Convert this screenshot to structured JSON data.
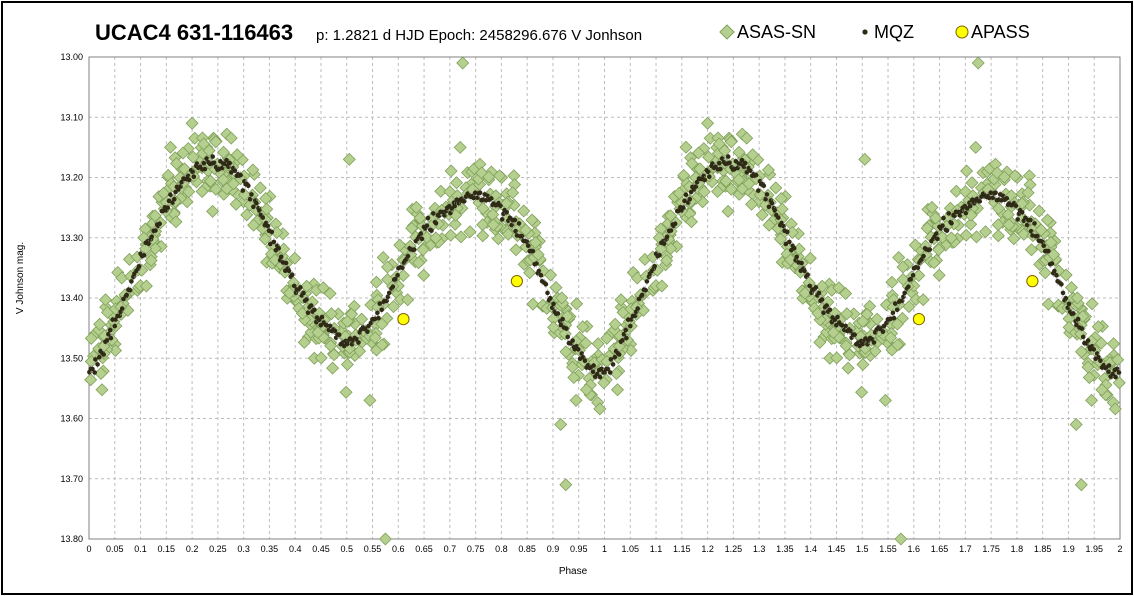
{
  "chart_data": {
    "type": "scatter",
    "title": "UCAC4 631-116463",
    "subtitle": "p: 1.2821 d  HJD Epoch: 2458296.676  V Jonhson",
    "xlabel": "Phase",
    "ylabel": "V Johnson mag.",
    "xlim": [
      0,
      2
    ],
    "ylim": [
      13.0,
      13.8
    ],
    "y_inverted": true,
    "grid": true,
    "legend_position": "top-right",
    "x_ticks": [
      "0",
      "0.05",
      "0.1",
      "0.15",
      "0.2",
      "0.25",
      "0.3",
      "0.35",
      "0.4",
      "0.45",
      "0.5",
      "0.55",
      "0.6",
      "0.65",
      "0.7",
      "0.75",
      "0.8",
      "0.85",
      "0.9",
      "0.95",
      "1",
      "1.05",
      "1.1",
      "1.15",
      "1.2",
      "1.25",
      "1.3",
      "1.35",
      "1.4",
      "1.45",
      "1.5",
      "1.55",
      "1.6",
      "1.65",
      "1.7",
      "1.75",
      "1.8",
      "1.85",
      "1.9",
      "1.95",
      "2"
    ],
    "y_ticks": [
      "13.00",
      "13.10",
      "13.20",
      "13.30",
      "13.40",
      "13.50",
      "13.60",
      "13.70",
      "13.80"
    ],
    "model_curve": {
      "phase": [
        0.0,
        0.05,
        0.1,
        0.15,
        0.2,
        0.25,
        0.3,
        0.35,
        0.4,
        0.45,
        0.5,
        0.55,
        0.6,
        0.65,
        0.7,
        0.75,
        0.8,
        0.85,
        0.9,
        0.95,
        1.0
      ],
      "mag": [
        13.52,
        13.44,
        13.34,
        13.25,
        13.19,
        13.18,
        13.21,
        13.29,
        13.38,
        13.44,
        13.47,
        13.44,
        13.36,
        13.29,
        13.25,
        13.23,
        13.25,
        13.31,
        13.41,
        13.49,
        13.52
      ]
    },
    "series": [
      {
        "name": "ASAS-SN",
        "marker": "diamond",
        "color": "#b5cf8e",
        "edge_color": "#7fa05a",
        "outliers": [
          {
            "x": 0.725,
            "y": 13.01
          },
          {
            "x": 0.575,
            "y": 13.8
          },
          {
            "x": 0.915,
            "y": 13.61
          },
          {
            "x": 0.925,
            "y": 13.71
          },
          {
            "x": 0.505,
            "y": 13.17
          },
          {
            "x": 0.945,
            "y": 13.57
          },
          {
            "x": 0.545,
            "y": 13.57
          },
          {
            "x": 0.2,
            "y": 13.11
          },
          {
            "x": 0.72,
            "y": 13.15
          }
        ]
      },
      {
        "name": "MQZ",
        "marker": "dot",
        "color": "#2e2a14"
      },
      {
        "name": "APASS",
        "marker": "circle",
        "color": "#ffff00",
        "edge_color": "#806000",
        "points": [
          {
            "x": 0.61,
            "y": 13.435
          },
          {
            "x": 0.83,
            "y": 13.372
          },
          {
            "x": 1.61,
            "y": 13.435
          },
          {
            "x": 1.83,
            "y": 13.372
          }
        ]
      }
    ]
  }
}
